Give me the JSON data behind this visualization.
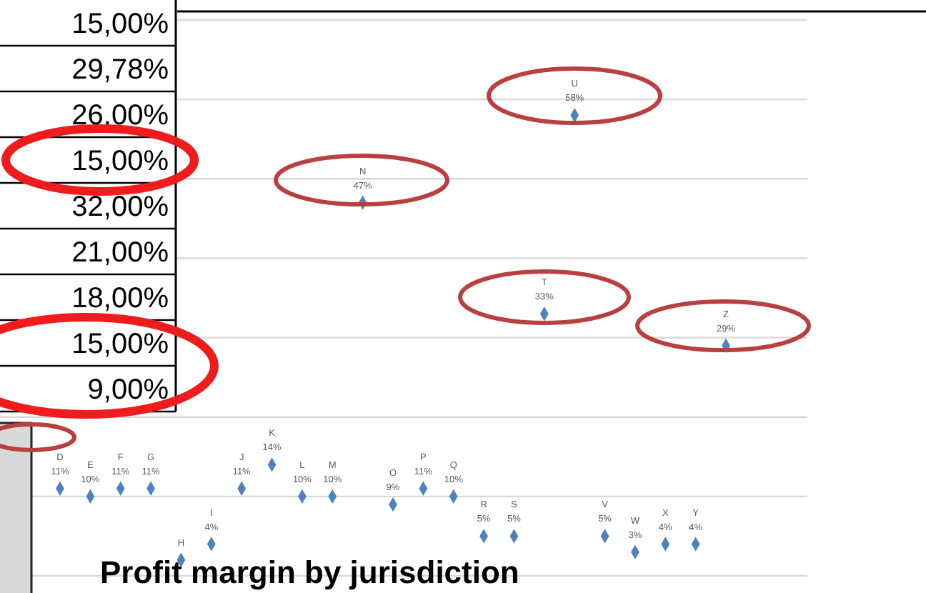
{
  "chart_data": {
    "type": "scatter",
    "title": "Profit margin by jurisdiction",
    "categories": [
      "D",
      "E",
      "F",
      "G",
      "H",
      "I",
      "J",
      "K",
      "L",
      "M",
      "N",
      "O",
      "P",
      "Q",
      "R",
      "S",
      "T",
      "U",
      "V",
      "W",
      "X",
      "Y",
      "Z"
    ],
    "values": [
      11,
      10,
      11,
      11,
      2,
      4,
      11,
      14,
      10,
      10,
      47,
      9,
      11,
      10,
      5,
      5,
      33,
      58,
      5,
      3,
      4,
      4,
      29
    ],
    "value_labels": [
      "11%",
      "10%",
      "11%",
      "11%",
      null,
      "4%",
      "11%",
      "14%",
      "10%",
      "10%",
      "47%",
      "9%",
      "11%",
      "10%",
      "5%",
      "5%",
      "33%",
      "58%",
      "5%",
      "3%",
      "4%",
      "4%",
      "29%"
    ],
    "color": "#4f81bd",
    "marker": "diamond",
    "ylim": [
      0,
      70
    ],
    "yticks": [
      {
        "value": 0,
        "label": null
      },
      {
        "value": 10,
        "label": null
      },
      {
        "value": 20,
        "label": null
      },
      {
        "value": 30,
        "label": null
      },
      {
        "value": 40,
        "label": null
      },
      {
        "value": 50,
        "label": null
      },
      {
        "value": 60,
        "label": null
      },
      {
        "value": 70,
        "label": null
      }
    ],
    "grid": "y",
    "annotations": [
      "15,00%",
      "29,78%",
      "26,00%",
      "15,00%",
      "32,00%",
      "21,00%",
      "18,00%",
      "15,00%",
      "9,00%"
    ]
  }
}
